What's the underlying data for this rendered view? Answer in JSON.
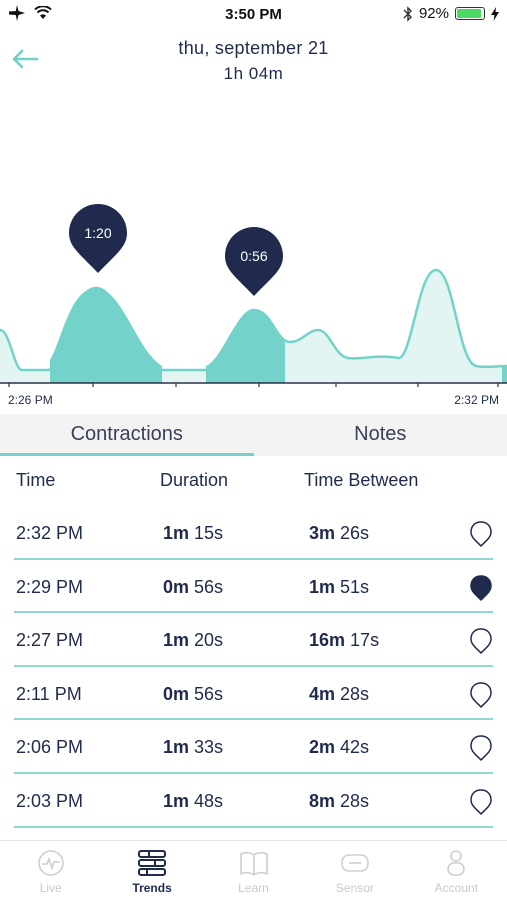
{
  "status_bar": {
    "time": "3:50 PM",
    "battery_percent": "92%",
    "battery_level": 0.92,
    "icons": [
      "airplane-icon",
      "wifi-icon",
      "bluetooth-icon",
      "battery-icon",
      "charging-icon"
    ]
  },
  "header": {
    "title": "thu, september 21",
    "subtitle": "1h 04m"
  },
  "chart": {
    "start_label": "2:26 PM",
    "end_label": "2:32 PM",
    "markers": [
      {
        "label": "1:20"
      },
      {
        "label": "0:56"
      }
    ],
    "colors": {
      "highlight": "#73d2c9",
      "background_fill": "#e2f5f3",
      "marker": "#1f2a4d"
    }
  },
  "tabs": [
    {
      "label": "Contractions",
      "active": true
    },
    {
      "label": "Notes",
      "active": false
    }
  ],
  "table": {
    "headers": [
      "Time",
      "Duration",
      "Time Between"
    ],
    "rows": [
      {
        "time": "2:32 PM",
        "dur_m": "1m",
        "dur_s": "15s",
        "btw_m": "3m",
        "btw_s": "26s",
        "selected": false
      },
      {
        "time": "2:29 PM",
        "dur_m": "0m",
        "dur_s": "56s",
        "btw_m": "1m",
        "btw_s": "51s",
        "selected": true
      },
      {
        "time": "2:27 PM",
        "dur_m": "1m",
        "dur_s": "20s",
        "btw_m": "16m",
        "btw_s": "17s",
        "selected": false
      },
      {
        "time": "2:11 PM",
        "dur_m": "0m",
        "dur_s": "56s",
        "btw_m": "4m",
        "btw_s": "28s",
        "selected": false
      },
      {
        "time": "2:06 PM",
        "dur_m": "1m",
        "dur_s": "33s",
        "btw_m": "2m",
        "btw_s": "42s",
        "selected": false
      },
      {
        "time": "2:03 PM",
        "dur_m": "1m",
        "dur_s": "48s",
        "btw_m": "8m",
        "btw_s": "28s",
        "selected": false
      }
    ]
  },
  "bottom_nav": [
    {
      "label": "Live",
      "icon": "heart-monitor-icon",
      "active": false
    },
    {
      "label": "Trends",
      "icon": "trends-icon",
      "active": true
    },
    {
      "label": "Learn",
      "icon": "book-icon",
      "active": false
    },
    {
      "label": "Sensor",
      "icon": "sensor-icon",
      "active": false
    },
    {
      "label": "Account",
      "icon": "account-icon",
      "active": false
    }
  ]
}
